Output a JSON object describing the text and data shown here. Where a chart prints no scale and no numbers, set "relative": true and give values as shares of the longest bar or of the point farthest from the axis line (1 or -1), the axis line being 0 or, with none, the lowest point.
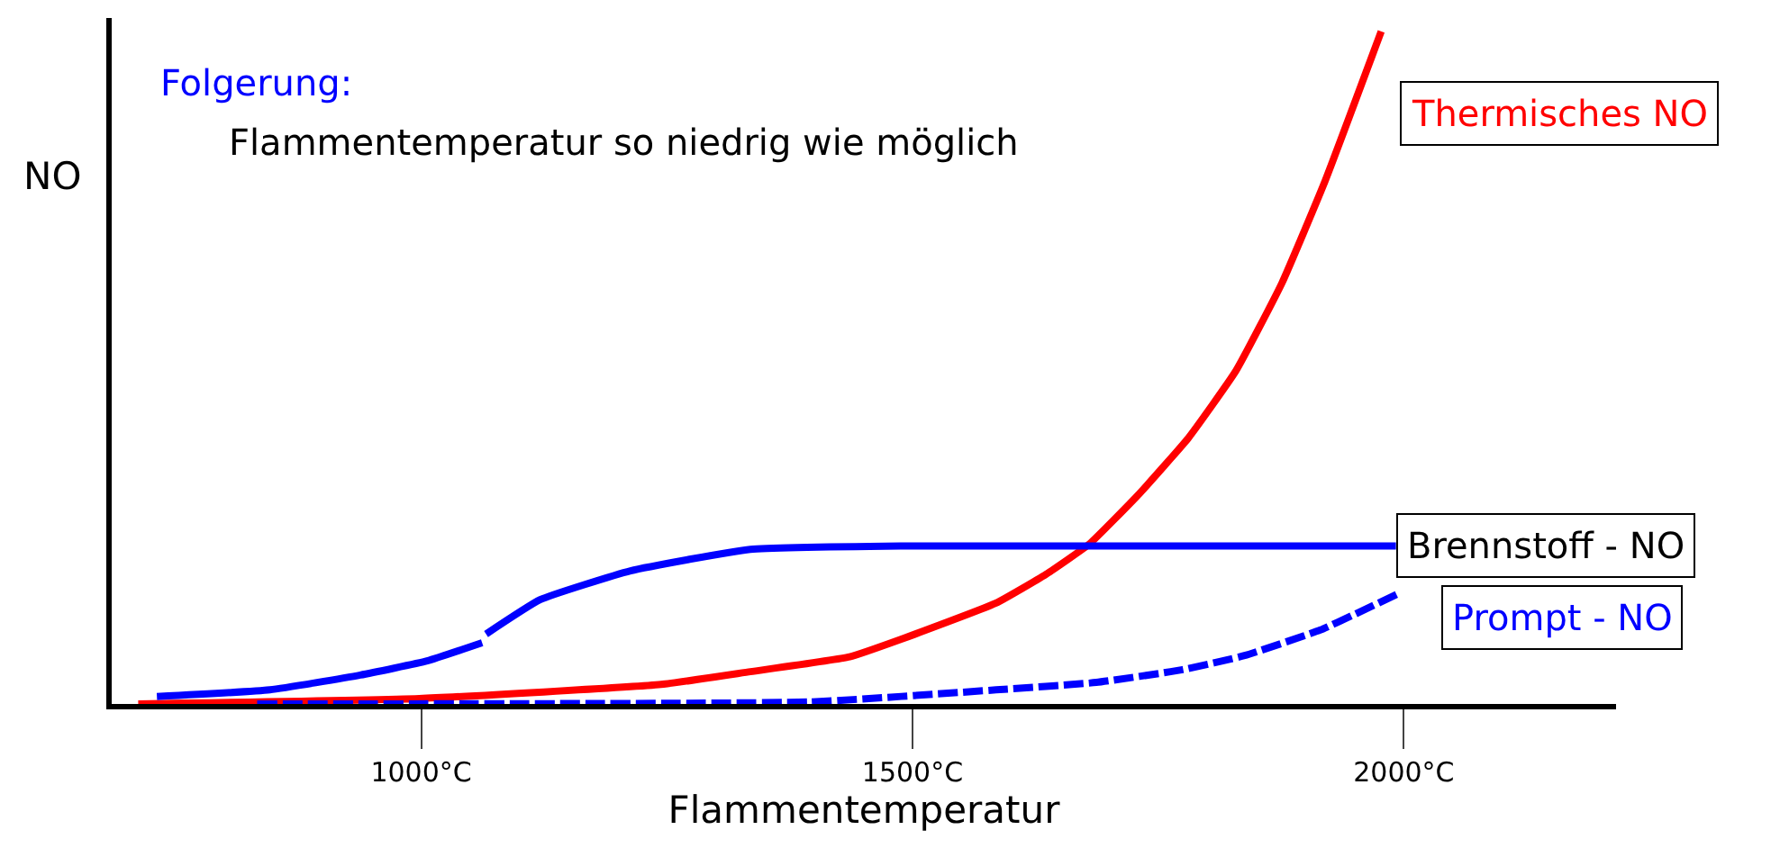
{
  "chart_data": {
    "type": "line",
    "relative": true,
    "title": "Folgerung:",
    "subtitle": "Flammentemperatur so niedrig wie möglich",
    "xlabel": "Flammentemperatur",
    "ylabel": "NO",
    "xlim": [
      685,
      2216
    ],
    "xticks": [
      {
        "value": 1000,
        "label": "1000°C"
      },
      {
        "value": 1500,
        "label": "1500°C"
      },
      {
        "value": 2000,
        "label": "2000°C"
      }
    ],
    "grid": false,
    "legend": false,
    "marker": "none",
    "series": [
      {
        "name": "Thermisches NO",
        "color": "#ff0000",
        "line_style": "solid",
        "x": [
          712,
          998,
          1244,
          1335,
          1436,
          1488,
          1585,
          1636,
          1680,
          1731,
          1781,
          1829,
          1876,
          1920,
          1977
        ],
        "values": [
          0,
          0.008,
          0.029,
          0.048,
          0.07,
          0.096,
          0.15,
          0.193,
          0.238,
          0.313,
          0.396,
          0.495,
          0.626,
          0.778,
          1.0
        ]
      },
      {
        "name": "Brennstoff - NO",
        "color": "#0000ff",
        "line_style": "solid",
        "x": [
          731,
          846,
          938,
          1006,
          1062,
          1064,
          1066,
          1121,
          1213,
          1335,
          1488,
          1992
        ],
        "values": [
          0.011,
          0.021,
          0.043,
          0.064,
          0.091,
          null,
          0.104,
          0.155,
          0.198,
          0.23,
          0.235,
          0.235
        ]
      },
      {
        "name": "Prompt - NO",
        "color": "#0000ff",
        "line_style": "dashed",
        "x": [
          833,
          1396,
          1585,
          1687,
          1775,
          1838,
          1915,
          1951,
          1997
        ],
        "values": [
          0,
          0.003,
          0.021,
          0.032,
          0.051,
          0.072,
          0.11,
          0.134,
          0.166
        ]
      }
    ]
  }
}
